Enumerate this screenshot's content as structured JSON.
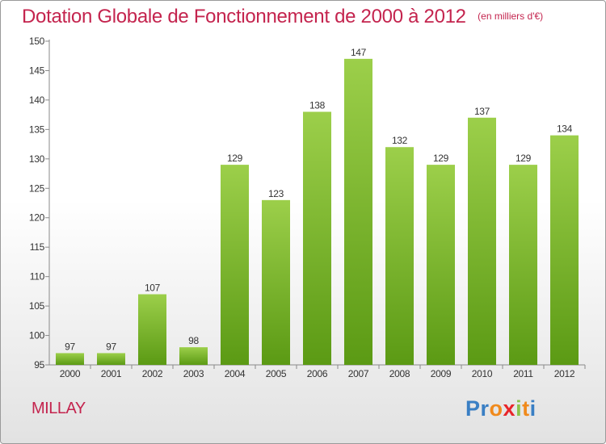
{
  "header": {
    "title": "Dotation Globale de Fonctionnement de 2000 à 2012",
    "subtitle": "(en milliers d'€)"
  },
  "footer": {
    "commune": "MILLAY",
    "logo_letters": [
      "P",
      "r",
      "o",
      "x",
      "i",
      "t",
      "i"
    ],
    "logo_colors": [
      "#3a7fc4",
      "#3a7fc4",
      "#f08a1c",
      "#e8252a",
      "#8bc34a",
      "#f08a1c",
      "#3a7fc4"
    ]
  },
  "chart_data": {
    "type": "bar",
    "title": "Dotation Globale de Fonctionnement de 2000 à 2012",
    "subtitle": "(en milliers d'€)",
    "xlabel": "",
    "ylabel": "",
    "categories": [
      "2000",
      "2001",
      "2002",
      "2003",
      "2004",
      "2005",
      "2006",
      "2007",
      "2008",
      "2009",
      "2010",
      "2011",
      "2012"
    ],
    "values": [
      97,
      97,
      107,
      98,
      129,
      123,
      138,
      147,
      132,
      129,
      137,
      129,
      134
    ],
    "ylim": [
      95,
      150
    ],
    "yticks": [
      95,
      100,
      105,
      110,
      115,
      120,
      125,
      130,
      135,
      140,
      145,
      150
    ],
    "grid": false,
    "bar_color_top": "#9ccf4a",
    "bar_color_bottom": "#5b9a14",
    "data_labels": true
  }
}
